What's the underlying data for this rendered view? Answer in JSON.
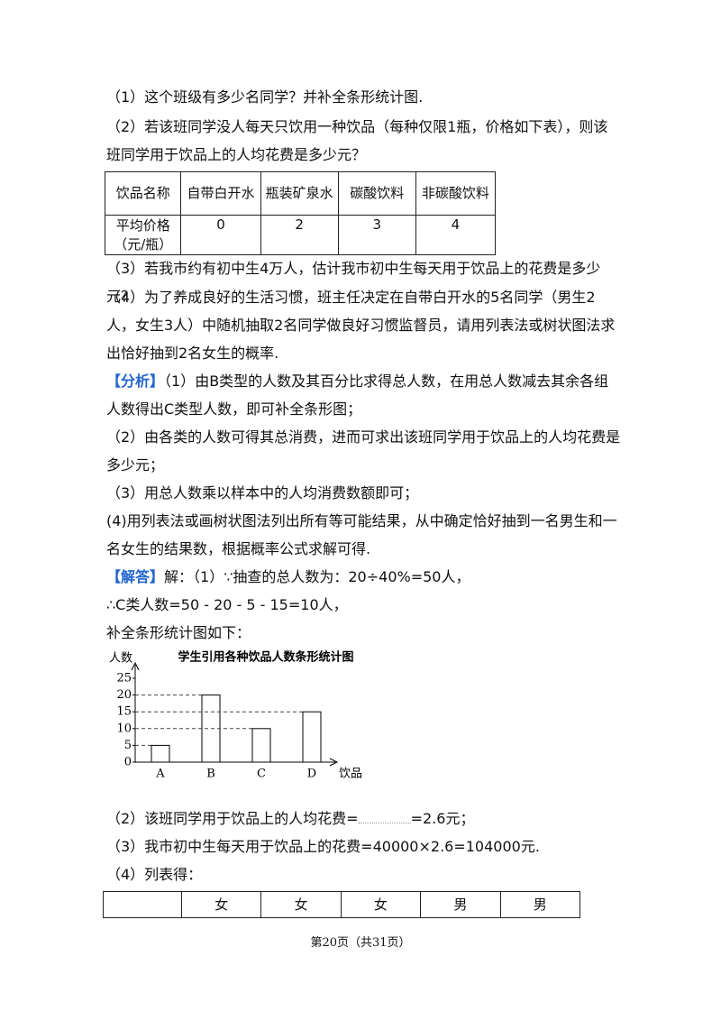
{
  "questions": [
    "（1）这个班级有多少名同学？并补全条形统计图.",
    "（2）若该班同学没人每天只饮用一种饮品（每种仅限1瓶，价格如下表），则该班同学用于饮品上的人均花费是多少元？",
    "（3）若我市约有初中生4万人，估计我市初中生每天用于饮品上的花费是多少元？",
    "（4）为了养成良好的生活习惯，班主任决定在自带白开水的5名同学（男生2人，女生3人）中随机抽取2名同学做良好习惯监督员，请用列表法或树状图法求出恰好抽到2名女生的概率."
  ],
  "price_table": {
    "header": [
      "饮品名称",
      "自带白开水",
      "瓶装矿泉水",
      "碳酸饮料",
      "非碳酸饮料"
    ],
    "row": [
      "平均价格（元/瓶）",
      0,
      2,
      3,
      4
    ]
  },
  "analysis": {
    "tag": "【分析】",
    "items": [
      "（1）由B类型的人数及其百分比求得总人数，在用总人数减去其余各组人数得出C类型人数，即可补全条形图；",
      "（2）由各类的人数可得其总消费，进而可求出该班同学用于饮品上的人均花费是多少元；",
      "（3）用总人数乘以样本中的人均消费数额即可；",
      "(4)用列表法或画树状图法列出所有等可能结果，从中确定恰好抽到一名男生和一名女生的结果数，根据概率公式求解可得."
    ]
  },
  "solution": {
    "tag": "【解答】",
    "lines": [
      "解：（1）∵抽查的总人数为：20÷40%=50人，",
      "∴C类人数=50 - 20 - 5 - 15=10人，",
      "补全条形统计图如下："
    ]
  },
  "chart_data": {
    "type": "bar",
    "title": "学生引用各种饮品人数条形统计图",
    "y_label": "人数",
    "x_label": "饮品",
    "categories": [
      "A",
      "B",
      "C",
      "D"
    ],
    "values": [
      5,
      20,
      10,
      15
    ],
    "ylim": [
      0,
      25
    ],
    "yticks": [
      0,
      5,
      10,
      15,
      20,
      25
    ],
    "color": "#ffffff"
  },
  "solution_tail": {
    "q2_before": "（2）该班同学用于饮品上的人均花费=",
    "q2_after": "=2.6元；",
    "q3": "（3）我市初中生每天用于饮品上的花费=40000×2.6=104000元.",
    "q4": "（4）列表得："
  },
  "list_table": {
    "header": [
      "女",
      "女",
      "女",
      "男",
      "男"
    ]
  },
  "footer": "第20页（共31页）"
}
